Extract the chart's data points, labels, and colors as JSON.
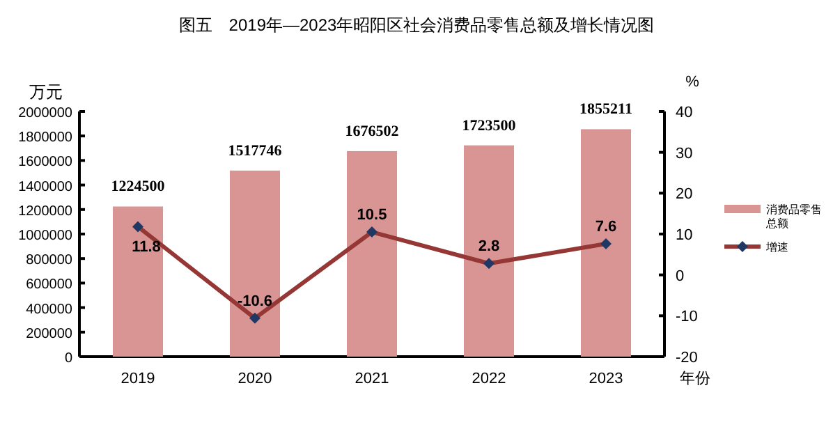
{
  "chart_data": {
    "type": "bar",
    "title": "图五　2019年—2023年昭阳区社会消费品零售总额及增长情况图",
    "categories": [
      "2019",
      "2020",
      "2021",
      "2022",
      "2023"
    ],
    "xlabel": "年份",
    "ylabel": "万元",
    "y2label": "%",
    "series": [
      {
        "name": "消费品零售总额",
        "color": "#d99594",
        "values": [
          1224500,
          1517746,
          1676502,
          1723500,
          1855211
        ],
        "data_labels": true
      },
      {
        "name": "增速",
        "type": "line",
        "axis": "y2",
        "color": "#953735",
        "marker": "diamond",
        "values": [
          11.8,
          -10.6,
          10.5,
          2.8,
          7.6
        ],
        "data_labels": true
      }
    ],
    "ylim": [
      0,
      2000000
    ],
    "yticks": [
      0,
      200000,
      400000,
      600000,
      800000,
      1000000,
      1200000,
      1400000,
      1600000,
      1800000,
      2000000
    ],
    "y2lim": [
      -20,
      40
    ],
    "y2ticks": [
      -20,
      -10,
      0,
      10,
      20,
      30,
      40
    ],
    "legend": "right",
    "grid": false
  }
}
